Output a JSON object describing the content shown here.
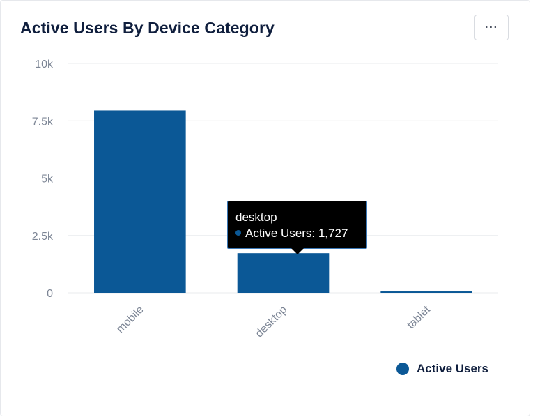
{
  "card": {
    "title": "Active Users By Device Category",
    "menu_icon": "more-horizontal-icon",
    "menu_label": "···"
  },
  "colors": {
    "bar": "#0b5896",
    "grid": "#e9ebee",
    "tick": "#7c8595",
    "title": "#0f1e3d",
    "tooltip_bg": "#000000",
    "tooltip_border": "#3b78b6"
  },
  "chart_data": {
    "type": "bar",
    "title": "Active Users By Device Category",
    "categories": [
      "mobile",
      "desktop",
      "tablet"
    ],
    "series": [
      {
        "name": "Active Users",
        "values": [
          7950,
          1727,
          60
        ]
      }
    ],
    "ylim": [
      0,
      10000
    ],
    "yticks": [
      0,
      2500,
      5000,
      7500,
      10000
    ],
    "ytick_labels": [
      "0",
      "2.5k",
      "5k",
      "7.5k",
      "10k"
    ],
    "xlabel": "",
    "ylabel": "",
    "legend": {
      "placement": "bottom-right",
      "entries": [
        "Active Users"
      ]
    },
    "tooltip": {
      "category": "desktop",
      "series_name": "Active Users",
      "value_label": "1,727",
      "text": "Active Users: 1,727"
    }
  }
}
